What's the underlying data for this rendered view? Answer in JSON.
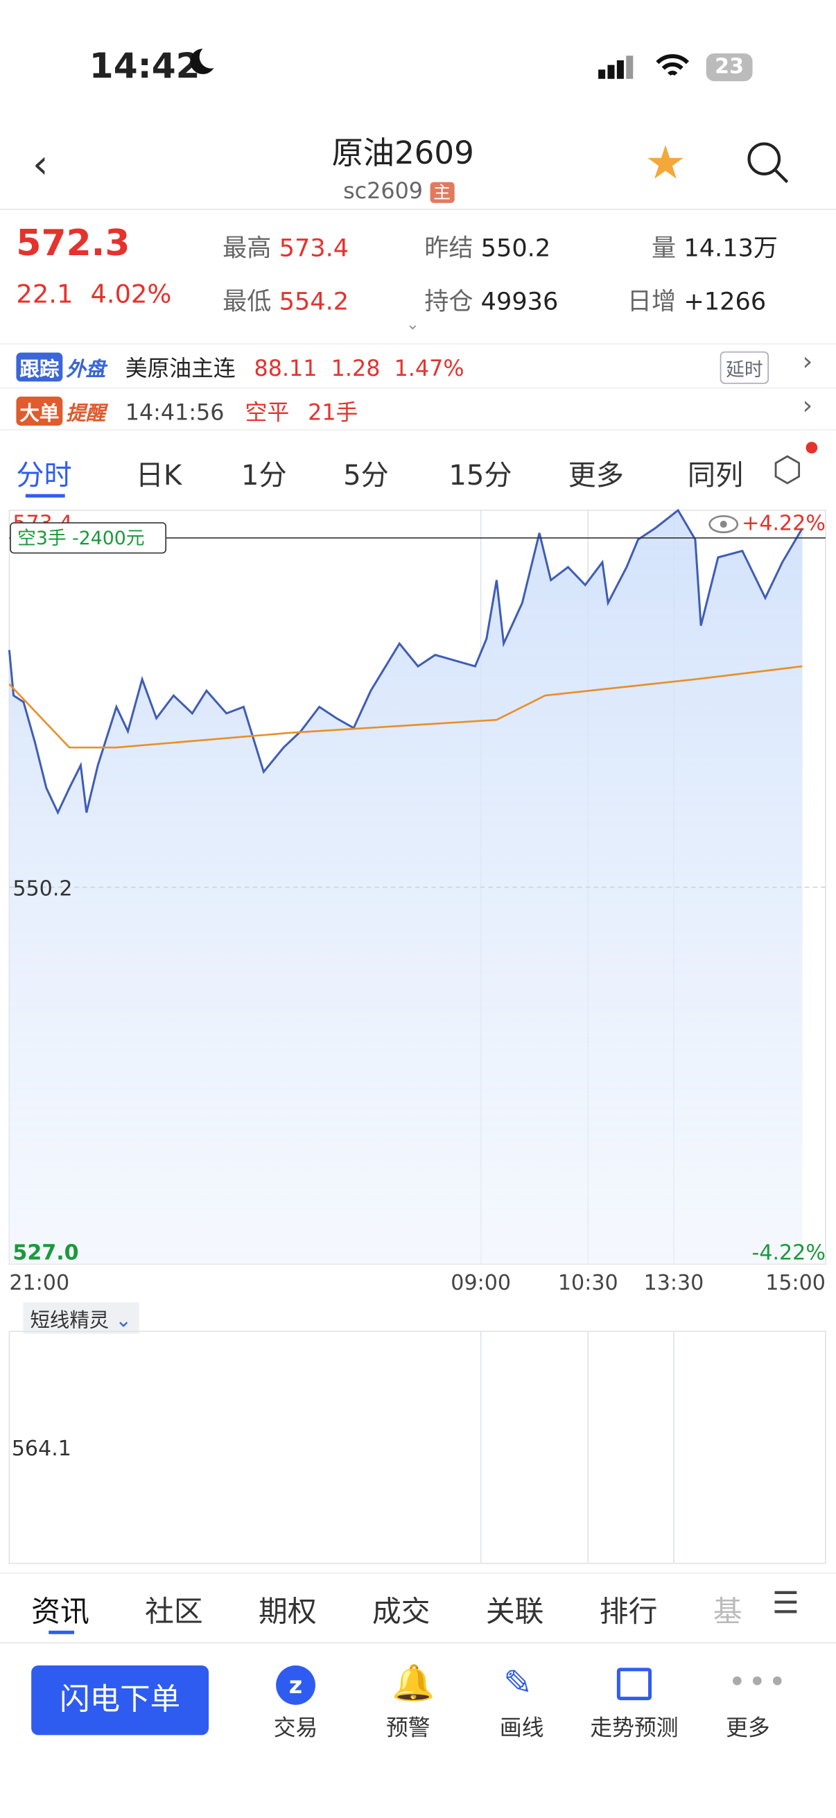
{
  "status_bar": {
    "time": "14:42",
    "battery": "23"
  },
  "header": {
    "title": "原油2609",
    "code": "sc2609",
    "badge": "主"
  },
  "quote": {
    "price": "572.3",
    "change": "22.1",
    "change_pct": "4.02%",
    "fields": [
      {
        "label": "最高",
        "value": "573.4"
      },
      {
        "label": "昨结",
        "value": "550.2"
      },
      {
        "label": "量",
        "value": "14.13万"
      },
      {
        "label": "最低",
        "value": "554.2"
      },
      {
        "label": "持仓",
        "value": "49936"
      },
      {
        "label": "日增",
        "value": "+1266"
      }
    ]
  },
  "tracking": {
    "tag1": "跟踪",
    "tag2": "外盘",
    "name": "美原油主连",
    "price": "88.11",
    "change": "1.28",
    "pct": "1.47%",
    "status": "延时"
  },
  "alert": {
    "tag1": "大单",
    "tag2": "提醒",
    "time": "14:41:56",
    "action": "空平",
    "qty": "21手"
  },
  "period_tabs": [
    "分时",
    "日K",
    "1分",
    "5分",
    "15分",
    "更多",
    "同列"
  ],
  "chart_data": {
    "type": "line",
    "xlim": [
      0,
      555
    ],
    "xticks": [
      {
        "value": 0,
        "label": "21:00"
      },
      {
        "value": 330,
        "label": "09:00"
      },
      {
        "value": 405,
        "label": "10:30"
      },
      {
        "value": 465,
        "label": "13:30"
      },
      {
        "value": 555,
        "label": "15:00"
      }
    ],
    "ylim": [
      527,
      573.4
    ],
    "yticks": [
      573.4,
      550.2,
      {
        "value": 527,
        "label": "527.0"
      }
    ],
    "y2lim": [
      -4.22,
      4.22
    ],
    "y2ticks": [
      {
        "value": 4.22,
        "label": "+4.22%"
      },
      {
        "value": -4.22,
        "label": "-4.22%"
      }
    ],
    "annotation": {
      "text": "空3手 -2400元",
      "value": 571.7
    },
    "series": [
      {
        "color": "#3f5db5",
        "x": [
          0,
          3,
          10,
          18,
          26,
          34,
          42,
          50,
          54,
          62,
          75,
          83,
          93,
          103,
          115,
          128,
          138,
          152,
          164,
          178,
          192,
          204,
          217,
          229,
          241,
          253,
          273,
          286,
          298,
          314,
          326,
          334,
          341,
          346,
          359,
          371,
          379,
          391,
          403,
          415,
          419,
          432,
          440,
          452,
          468,
          480,
          484,
          496,
          513,
          529,
          541,
          555
        ],
        "values": [
          564.8,
          562.0,
          561.6,
          559.1,
          556.3,
          554.8,
          556.3,
          557.7,
          554.8,
          557.7,
          561.3,
          559.8,
          563.0,
          560.6,
          562.0,
          560.9,
          562.3,
          560.9,
          561.3,
          557.3,
          558.8,
          559.8,
          561.3,
          560.6,
          560.0,
          562.3,
          565.2,
          563.8,
          564.5,
          564.1,
          563.8,
          565.5,
          569.1,
          565.2,
          567.7,
          572.0,
          569.1,
          569.9,
          568.8,
          570.2,
          567.7,
          569.9,
          571.6,
          572.3,
          573.4,
          571.6,
          566.3,
          570.5,
          570.9,
          568.0,
          570.2,
          572.3
        ]
      },
      {
        "color": "#e8902a",
        "x": [
          0,
          42,
          75,
          196,
          341,
          375,
          480,
          555
        ],
        "values": [
          562.7,
          558.8,
          558.8,
          559.7,
          560.5,
          562.0,
          563.0,
          563.8
        ]
      }
    ]
  },
  "indicator": {
    "title": "短线精灵",
    "label": "564.1"
  },
  "info_tabs": [
    "资讯",
    "社区",
    "期权",
    "成交",
    "关联",
    "排行",
    "基"
  ],
  "bottom_bar": {
    "order_button": "闪电下单",
    "items": [
      "交易",
      "预警",
      "画线",
      "走势预测",
      "更多"
    ]
  }
}
